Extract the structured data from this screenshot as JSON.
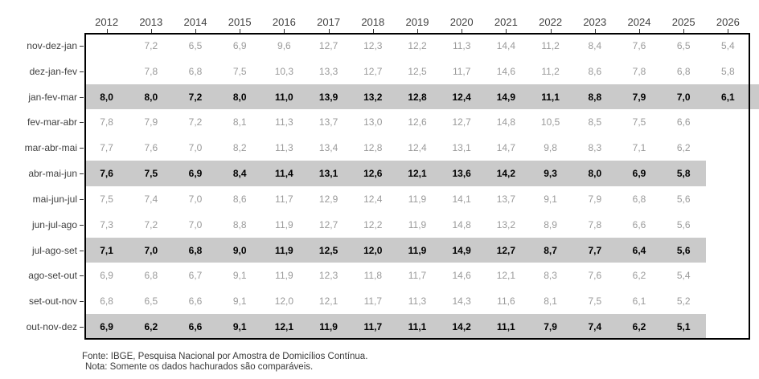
{
  "chart_data": {
    "type": "table",
    "categories": [
      "2012",
      "2013",
      "2014",
      "2015",
      "2016",
      "2017",
      "2018",
      "2019",
      "2020",
      "2021",
      "2022",
      "2023",
      "2024",
      "2025",
      "2026"
    ],
    "rows": [
      {
        "label": "nov-dez-jan",
        "highlighted": false,
        "values": [
          null,
          7.2,
          6.5,
          6.9,
          9.6,
          12.7,
          12.3,
          12.2,
          11.3,
          14.4,
          11.2,
          8.4,
          7.6,
          6.5,
          5.4
        ]
      },
      {
        "label": "dez-jan-fev",
        "highlighted": false,
        "values": [
          null,
          7.8,
          6.8,
          7.5,
          10.3,
          13.3,
          12.7,
          12.5,
          11.7,
          14.6,
          11.2,
          8.6,
          7.8,
          6.8,
          5.8
        ]
      },
      {
        "label": "jan-fev-mar",
        "highlighted": true,
        "values": [
          8.0,
          8.0,
          7.2,
          8.0,
          11.0,
          13.9,
          13.2,
          12.8,
          12.4,
          14.9,
          11.1,
          8.8,
          7.9,
          7.0,
          6.1
        ]
      },
      {
        "label": "fev-mar-abr",
        "highlighted": false,
        "values": [
          7.8,
          7.9,
          7.2,
          8.1,
          11.3,
          13.7,
          13.0,
          12.6,
          12.7,
          14.8,
          10.5,
          8.5,
          7.5,
          6.6,
          null
        ]
      },
      {
        "label": "mar-abr-mai",
        "highlighted": false,
        "values": [
          7.7,
          7.6,
          7.0,
          8.2,
          11.3,
          13.4,
          12.8,
          12.4,
          13.1,
          14.7,
          9.8,
          8.3,
          7.1,
          6.2,
          null
        ]
      },
      {
        "label": "abr-mai-jun",
        "highlighted": true,
        "values": [
          7.6,
          7.5,
          6.9,
          8.4,
          11.4,
          13.1,
          12.6,
          12.1,
          13.6,
          14.2,
          9.3,
          8.0,
          6.9,
          5.8,
          null
        ]
      },
      {
        "label": "mai-jun-jul",
        "highlighted": false,
        "values": [
          7.5,
          7.4,
          7.0,
          8.6,
          11.7,
          12.9,
          12.4,
          11.9,
          14.1,
          13.7,
          9.1,
          7.9,
          6.8,
          5.6,
          null
        ]
      },
      {
        "label": "jun-jul-ago",
        "highlighted": false,
        "values": [
          7.3,
          7.2,
          7.0,
          8.8,
          11.9,
          12.7,
          12.2,
          11.9,
          14.8,
          13.2,
          8.9,
          7.8,
          6.6,
          5.6,
          null
        ]
      },
      {
        "label": "jul-ago-set",
        "highlighted": true,
        "values": [
          7.1,
          7.0,
          6.8,
          9.0,
          11.9,
          12.5,
          12.0,
          11.9,
          14.9,
          12.7,
          8.7,
          7.7,
          6.4,
          5.6,
          null
        ]
      },
      {
        "label": "ago-set-out",
        "highlighted": false,
        "values": [
          6.9,
          6.8,
          6.7,
          9.1,
          11.9,
          12.3,
          11.8,
          11.7,
          14.6,
          12.1,
          8.3,
          7.6,
          6.2,
          5.4,
          null
        ]
      },
      {
        "label": "set-out-nov",
        "highlighted": false,
        "values": [
          6.8,
          6.5,
          6.6,
          9.1,
          12.0,
          12.1,
          11.7,
          11.3,
          14.3,
          11.6,
          8.1,
          7.5,
          6.1,
          5.2,
          null
        ]
      },
      {
        "label": "out-nov-dez",
        "highlighted": true,
        "values": [
          6.9,
          6.2,
          6.6,
          9.1,
          12.1,
          11.9,
          11.7,
          11.1,
          14.2,
          11.1,
          7.9,
          7.4,
          6.2,
          5.1,
          null
        ]
      }
    ],
    "decimal_separator": ",",
    "source": "Fonte: IBGE, Pesquisa Nacional por Amostra de Domicílios Contínua.",
    "note": "Nota: Somente os dados hachurados são comparáveis.",
    "layout": {
      "grid": "off",
      "highlight_band_color": "#cacaca",
      "value_color": "#9a9a9a",
      "highlight_value_color": "#000000",
      "axis_text_color": "#3f3f3f",
      "border_color": "#000000"
    }
  }
}
